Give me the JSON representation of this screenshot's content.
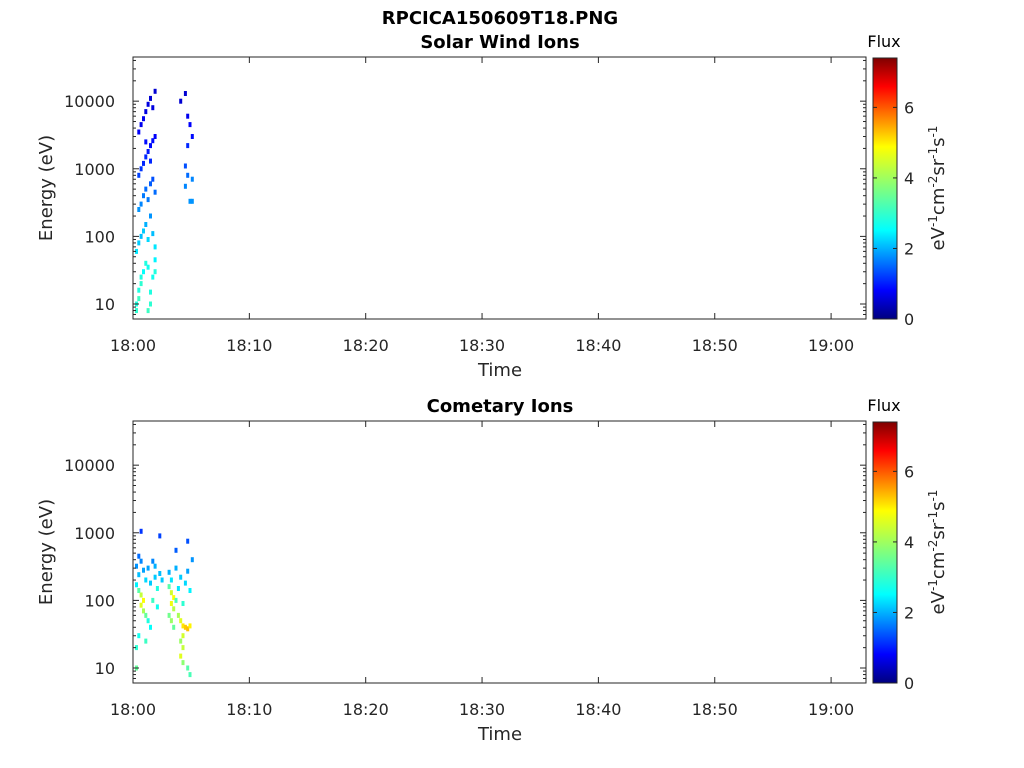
{
  "figure_title": "RPCICA150609T18.PNG",
  "chart_data": [
    {
      "type": "heatmap",
      "title": "Solar Wind Ions",
      "xlabel": "Time",
      "ylabel": "Energy (eV)",
      "x_ticks": [
        "18:00",
        "18:10",
        "18:20",
        "18:30",
        "18:40",
        "18:50",
        "19:00"
      ],
      "x_range_minutes": [
        0,
        63
      ],
      "y_scale": "log",
      "y_ticks": [
        "10",
        "100",
        "1000",
        "10000"
      ],
      "y_range": [
        6,
        45000
      ],
      "colorbar": {
        "title": "Flux",
        "label": "eV-1cm-2sr-1s-1",
        "range": [
          0,
          7.4
        ],
        "ticks": [
          "0",
          "2",
          "4",
          "6"
        ],
        "colormap": "jet"
      },
      "points": [
        {
          "t": 0.3,
          "e": 8,
          "v": 3.1
        },
        {
          "t": 0.3,
          "e": 10,
          "v": 3.0
        },
        {
          "t": 0.5,
          "e": 12,
          "v": 3.2
        },
        {
          "t": 0.5,
          "e": 16,
          "v": 3.0
        },
        {
          "t": 0.7,
          "e": 20,
          "v": 3.1
        },
        {
          "t": 0.7,
          "e": 25,
          "v": 3.0
        },
        {
          "t": 0.9,
          "e": 30,
          "v": 2.8
        },
        {
          "t": 1.1,
          "e": 40,
          "v": 3.0
        },
        {
          "t": 1.3,
          "e": 35,
          "v": 2.9
        },
        {
          "t": 1.3,
          "e": 8,
          "v": 3.2
        },
        {
          "t": 1.5,
          "e": 10,
          "v": 3.1
        },
        {
          "t": 1.5,
          "e": 15,
          "v": 3.0
        },
        {
          "t": 1.7,
          "e": 25,
          "v": 2.9
        },
        {
          "t": 1.9,
          "e": 45,
          "v": 2.7
        },
        {
          "t": 1.9,
          "e": 30,
          "v": 3.0
        },
        {
          "t": 0.3,
          "e": 60,
          "v": 2.6
        },
        {
          "t": 0.5,
          "e": 80,
          "v": 2.4
        },
        {
          "t": 0.7,
          "e": 100,
          "v": 2.3
        },
        {
          "t": 0.9,
          "e": 120,
          "v": 2.4
        },
        {
          "t": 1.1,
          "e": 150,
          "v": 2.2
        },
        {
          "t": 1.3,
          "e": 90,
          "v": 2.5
        },
        {
          "t": 1.5,
          "e": 200,
          "v": 2.0
        },
        {
          "t": 1.7,
          "e": 110,
          "v": 2.3
        },
        {
          "t": 1.9,
          "e": 70,
          "v": 2.6
        },
        {
          "t": 0.5,
          "e": 250,
          "v": 2.0
        },
        {
          "t": 0.7,
          "e": 300,
          "v": 1.9
        },
        {
          "t": 0.9,
          "e": 400,
          "v": 1.8
        },
        {
          "t": 1.1,
          "e": 500,
          "v": 1.7
        },
        {
          "t": 1.3,
          "e": 350,
          "v": 1.8
        },
        {
          "t": 1.5,
          "e": 600,
          "v": 1.6
        },
        {
          "t": 1.7,
          "e": 700,
          "v": 1.5
        },
        {
          "t": 1.9,
          "e": 450,
          "v": 1.7
        },
        {
          "t": 0.5,
          "e": 800,
          "v": 1.4
        },
        {
          "t": 0.7,
          "e": 1000,
          "v": 1.3
        },
        {
          "t": 0.9,
          "e": 1200,
          "v": 1.2
        },
        {
          "t": 1.1,
          "e": 1500,
          "v": 1.2
        },
        {
          "t": 1.3,
          "e": 1800,
          "v": 1.1
        },
        {
          "t": 1.5,
          "e": 2200,
          "v": 1.0
        },
        {
          "t": 1.7,
          "e": 2600,
          "v": 1.0
        },
        {
          "t": 1.9,
          "e": 3000,
          "v": 0.9
        },
        {
          "t": 0.5,
          "e": 3500,
          "v": 0.9
        },
        {
          "t": 0.7,
          "e": 4500,
          "v": 0.8
        },
        {
          "t": 0.9,
          "e": 5500,
          "v": 0.8
        },
        {
          "t": 1.1,
          "e": 7000,
          "v": 0.7
        },
        {
          "t": 1.3,
          "e": 9000,
          "v": 0.7
        },
        {
          "t": 1.5,
          "e": 11000,
          "v": 0.6
        },
        {
          "t": 1.7,
          "e": 8000,
          "v": 0.7
        },
        {
          "t": 1.9,
          "e": 14000,
          "v": 0.6
        },
        {
          "t": 1.1,
          "e": 2500,
          "v": 1.0
        },
        {
          "t": 1.5,
          "e": 1300,
          "v": 1.2
        },
        {
          "t": 4.1,
          "e": 10000,
          "v": 0.6
        },
        {
          "t": 4.5,
          "e": 13000,
          "v": 0.6
        },
        {
          "t": 4.7,
          "e": 6000,
          "v": 0.8
        },
        {
          "t": 4.9,
          "e": 4500,
          "v": 0.9
        },
        {
          "t": 5.1,
          "e": 3000,
          "v": 1.0
        },
        {
          "t": 4.7,
          "e": 2200,
          "v": 1.2
        },
        {
          "t": 4.5,
          "e": 1100,
          "v": 1.5
        },
        {
          "t": 4.7,
          "e": 800,
          "v": 1.7
        },
        {
          "t": 5.1,
          "e": 700,
          "v": 1.9
        },
        {
          "t": 4.5,
          "e": 550,
          "v": 1.9
        },
        {
          "t": 4.9,
          "e": 330,
          "v": 2.0
        },
        {
          "t": 5.1,
          "e": 330,
          "v": 2.0
        }
      ]
    },
    {
      "type": "heatmap",
      "title": "Cometary Ions",
      "xlabel": "Time",
      "ylabel": "Energy (eV)",
      "x_ticks": [
        "18:00",
        "18:10",
        "18:20",
        "18:30",
        "18:40",
        "18:50",
        "19:00"
      ],
      "x_range_minutes": [
        0,
        63
      ],
      "y_scale": "log",
      "y_ticks": [
        "10",
        "100",
        "1000",
        "10000"
      ],
      "y_range": [
        6,
        45000
      ],
      "colorbar": {
        "title": "Flux",
        "label": "eV-1cm-2sr-1s-1",
        "range": [
          0,
          7.4
        ],
        "ticks": [
          "0",
          "2",
          "4",
          "6"
        ],
        "colormap": "jet"
      },
      "points": [
        {
          "t": 0.7,
          "e": 1050,
          "v": 1.3
        },
        {
          "t": 2.3,
          "e": 900,
          "v": 1.4
        },
        {
          "t": 3.7,
          "e": 550,
          "v": 1.6
        },
        {
          "t": 4.7,
          "e": 750,
          "v": 1.5
        },
        {
          "t": 0.5,
          "e": 450,
          "v": 1.7
        },
        {
          "t": 0.7,
          "e": 380,
          "v": 1.9
        },
        {
          "t": 0.3,
          "e": 320,
          "v": 2.0
        },
        {
          "t": 0.9,
          "e": 280,
          "v": 2.1
        },
        {
          "t": 0.5,
          "e": 240,
          "v": 2.3
        },
        {
          "t": 1.1,
          "e": 200,
          "v": 2.5
        },
        {
          "t": 0.3,
          "e": 170,
          "v": 2.7
        },
        {
          "t": 0.5,
          "e": 140,
          "v": 3.4
        },
        {
          "t": 0.7,
          "e": 120,
          "v": 4.2
        },
        {
          "t": 0.9,
          "e": 100,
          "v": 4.6
        },
        {
          "t": 0.7,
          "e": 85,
          "v": 4.4
        },
        {
          "t": 0.9,
          "e": 70,
          "v": 4.0
        },
        {
          "t": 1.1,
          "e": 60,
          "v": 3.5
        },
        {
          "t": 1.3,
          "e": 50,
          "v": 3.0
        },
        {
          "t": 1.5,
          "e": 40,
          "v": 2.8
        },
        {
          "t": 0.5,
          "e": 30,
          "v": 2.9
        },
        {
          "t": 1.1,
          "e": 25,
          "v": 3.2
        },
        {
          "t": 0.3,
          "e": 20,
          "v": 3.1
        },
        {
          "t": 0.3,
          "e": 10,
          "v": 3.5
        },
        {
          "t": 1.3,
          "e": 300,
          "v": 2.1
        },
        {
          "t": 1.5,
          "e": 180,
          "v": 2.4
        },
        {
          "t": 1.9,
          "e": 320,
          "v": 2.2
        },
        {
          "t": 1.9,
          "e": 220,
          "v": 2.4
        },
        {
          "t": 2.1,
          "e": 150,
          "v": 3.0
        },
        {
          "t": 1.7,
          "e": 100,
          "v": 3.2
        },
        {
          "t": 2.1,
          "e": 80,
          "v": 2.9
        },
        {
          "t": 3.1,
          "e": 260,
          "v": 2.2
        },
        {
          "t": 3.3,
          "e": 200,
          "v": 2.6
        },
        {
          "t": 3.1,
          "e": 160,
          "v": 3.4
        },
        {
          "t": 3.3,
          "e": 130,
          "v": 4.3
        },
        {
          "t": 3.5,
          "e": 110,
          "v": 4.6
        },
        {
          "t": 3.3,
          "e": 90,
          "v": 4.5
        },
        {
          "t": 3.5,
          "e": 75,
          "v": 4.1
        },
        {
          "t": 3.1,
          "e": 60,
          "v": 3.6
        },
        {
          "t": 3.3,
          "e": 50,
          "v": 3.9
        },
        {
          "t": 3.5,
          "e": 40,
          "v": 3.5
        },
        {
          "t": 3.7,
          "e": 100,
          "v": 3.3
        },
        {
          "t": 3.9,
          "e": 150,
          "v": 2.6
        },
        {
          "t": 3.7,
          "e": 300,
          "v": 2.2
        },
        {
          "t": 4.1,
          "e": 220,
          "v": 2.4
        },
        {
          "t": 4.3,
          "e": 90,
          "v": 3.1
        },
        {
          "t": 3.9,
          "e": 60,
          "v": 4.0
        },
        {
          "t": 4.1,
          "e": 50,
          "v": 4.4
        },
        {
          "t": 4.3,
          "e": 42,
          "v": 4.8
        },
        {
          "t": 4.5,
          "e": 40,
          "v": 5.0
        },
        {
          "t": 4.7,
          "e": 38,
          "v": 5.1
        },
        {
          "t": 4.9,
          "e": 42,
          "v": 4.7
        },
        {
          "t": 4.3,
          "e": 30,
          "v": 4.3
        },
        {
          "t": 4.1,
          "e": 25,
          "v": 3.9
        },
        {
          "t": 4.3,
          "e": 20,
          "v": 4.2
        },
        {
          "t": 4.1,
          "e": 15,
          "v": 4.4
        },
        {
          "t": 4.3,
          "e": 12,
          "v": 3.8
        },
        {
          "t": 4.7,
          "e": 10,
          "v": 3.4
        },
        {
          "t": 4.9,
          "e": 8,
          "v": 3.3
        },
        {
          "t": 5.1,
          "e": 400,
          "v": 2.0
        },
        {
          "t": 4.7,
          "e": 270,
          "v": 2.1
        },
        {
          "t": 4.5,
          "e": 180,
          "v": 2.5
        },
        {
          "t": 4.9,
          "e": 140,
          "v": 2.7
        },
        {
          "t": 2.3,
          "e": 250,
          "v": 2.3
        },
        {
          "t": 2.5,
          "e": 200,
          "v": 2.4
        },
        {
          "t": 1.7,
          "e": 380,
          "v": 1.9
        }
      ]
    }
  ]
}
